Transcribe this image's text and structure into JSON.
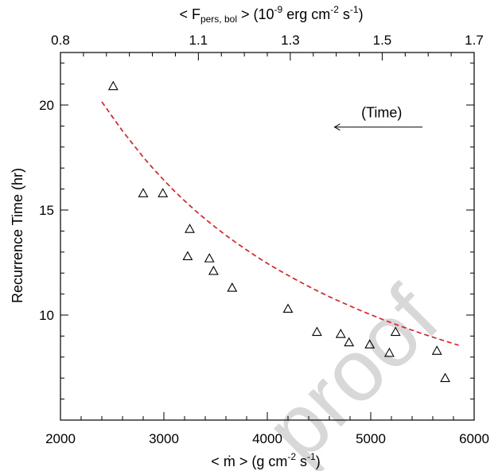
{
  "chart_data": {
    "type": "scatter",
    "bottom_axis": {
      "label_prefix": "< ",
      "label_mdot": "ṁ",
      "label_rest": " > (g cm",
      "label_exp1": "-2",
      "label_mid": " s",
      "label_exp2": "-1",
      "label_end": ")",
      "range": [
        2000,
        6000
      ],
      "ticks": [
        2000,
        3000,
        4000,
        5000,
        6000
      ],
      "tick_labels": [
        "2000",
        "3000",
        "4000",
        "5000",
        "6000"
      ],
      "minor_step": 200
    },
    "top_axis": {
      "label_start": "< F",
      "label_sub": "pers, bol",
      "label_mid": " > (10",
      "label_exp1": "-9",
      "label_mid2": " erg cm",
      "label_exp2": "-2",
      "label_mid3": " s",
      "label_exp3": "-1",
      "label_end": ")",
      "range": [
        0.8,
        1.7
      ],
      "ticks": [
        0.8,
        1.1,
        1.3,
        1.5,
        1.7
      ],
      "tick_labels": [
        "0.8",
        "1.1",
        "1.3",
        "1.5",
        "1.7"
      ],
      "minor_ticks": [
        0.85,
        0.9,
        0.95,
        1.0,
        1.05,
        1.15,
        1.2,
        1.25,
        1.35,
        1.4,
        1.45,
        1.55,
        1.6,
        1.65
      ]
    },
    "left_axis": {
      "label": "Recurrence Time (hr)",
      "range": [
        5,
        22.5
      ],
      "ticks": [
        10,
        15,
        20
      ],
      "tick_labels": [
        "10",
        "15",
        "20"
      ],
      "minor_step": 1
    },
    "annotation": {
      "text": "(Time)",
      "arrow_from": 5500,
      "arrow_to": 4650,
      "arrow_y": 18.95
    },
    "points": [
      {
        "x": 2510,
        "y": 20.9
      },
      {
        "x": 2800,
        "y": 15.8
      },
      {
        "x": 2990,
        "y": 15.8
      },
      {
        "x": 3250,
        "y": 14.1
      },
      {
        "x": 3230,
        "y": 12.8
      },
      {
        "x": 3440,
        "y": 12.7
      },
      {
        "x": 3480,
        "y": 12.1
      },
      {
        "x": 3660,
        "y": 11.3
      },
      {
        "x": 4200,
        "y": 10.3
      },
      {
        "x": 4480,
        "y": 9.2
      },
      {
        "x": 4710,
        "y": 9.1
      },
      {
        "x": 4790,
        "y": 8.7
      },
      {
        "x": 4990,
        "y": 8.6
      },
      {
        "x": 5180,
        "y": 8.2
      },
      {
        "x": 5240,
        "y": 9.2
      },
      {
        "x": 5640,
        "y": 8.3
      },
      {
        "x": 5720,
        "y": 7.0
      }
    ],
    "fit": {
      "style": "dashed",
      "color": "#e8141c",
      "x": [
        2400,
        2500,
        2600,
        2700,
        2800,
        2900,
        3000,
        3100,
        3200,
        3300,
        3400,
        3500,
        3600,
        3700,
        3800,
        3900,
        4000,
        4100,
        4200,
        4300,
        4400,
        4500,
        4600,
        4700,
        4800,
        4900,
        5000,
        5100,
        5200,
        5300,
        5400,
        5500,
        5600,
        5700,
        5800,
        5850
      ],
      "y": [
        20.15,
        19.45,
        18.76,
        18.14,
        17.52,
        16.95,
        16.42,
        15.91,
        15.44,
        14.99,
        14.57,
        14.17,
        13.79,
        13.44,
        13.1,
        12.77,
        12.46,
        12.17,
        11.89,
        11.62,
        11.36,
        11.11,
        10.87,
        10.65,
        10.43,
        10.22,
        10.02,
        9.82,
        9.63,
        9.45,
        9.28,
        9.11,
        8.95,
        8.79,
        8.64,
        8.56
      ]
    },
    "grid": false,
    "legend": "none"
  },
  "watermark": {
    "text": "proof"
  }
}
